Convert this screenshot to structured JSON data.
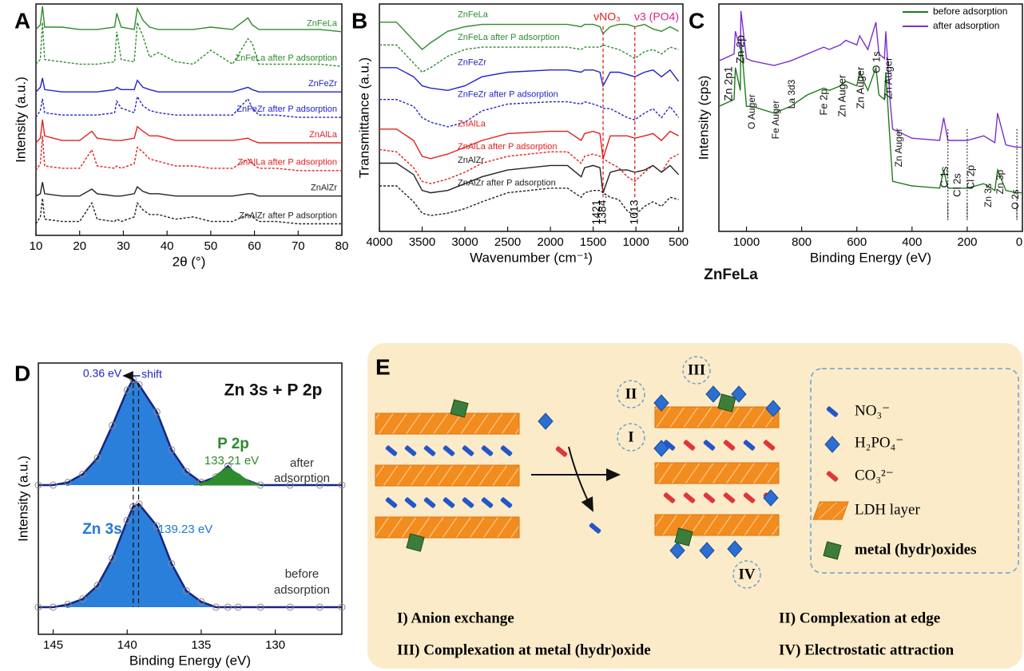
{
  "chart_data": [
    {
      "type": "line",
      "panel": "A",
      "x_label": "2θ (°)",
      "y_label": "Intensity (a.u.)",
      "xlim": [
        10,
        80
      ],
      "xticks": [
        10,
        20,
        30,
        40,
        50,
        60,
        70,
        80
      ],
      "ylim": [
        0,
        100
      ],
      "x": [
        10,
        11,
        11.5,
        12,
        16,
        20,
        22.8,
        24,
        28,
        28.5,
        29.5,
        32.5,
        33.2,
        34.5,
        36,
        38,
        42,
        46,
        50,
        55,
        58.5,
        59.5,
        61,
        65,
        70,
        75,
        80
      ],
      "series": [
        {
          "name": "ZnFeLa",
          "color": "#2e8b2e",
          "dashed": false,
          "values": [
            89,
            91,
            99,
            90,
            90,
            89,
            89,
            89,
            90,
            96,
            90,
            89,
            98,
            93,
            90,
            89,
            89,
            89,
            90,
            89,
            94,
            91,
            89,
            89,
            89,
            89,
            88
          ]
        },
        {
          "name": "ZnFeLa after P adsorption",
          "color": "#2e8b2e",
          "dashed": true,
          "values": [
            74,
            76,
            92,
            76,
            75,
            74,
            74,
            74,
            75,
            88,
            76,
            75,
            92,
            86,
            77,
            79,
            75,
            74,
            80,
            74,
            85,
            83,
            74,
            74,
            74,
            74,
            73
          ]
        },
        {
          "name": "ZnFeZr",
          "color": "#2323c8",
          "dashed": false,
          "values": [
            62,
            64,
            68,
            63,
            62,
            62,
            62,
            62,
            63,
            64,
            63,
            63,
            67,
            64,
            63,
            62,
            62,
            62,
            62,
            62,
            64,
            63,
            62,
            62,
            62,
            62,
            62
          ]
        },
        {
          "name": "ZnFeZr after P adsorption",
          "color": "#2323c8",
          "dashed": true,
          "values": [
            51,
            54,
            59,
            53,
            52,
            52,
            52,
            52,
            53,
            58,
            55,
            53,
            60,
            56,
            54,
            53,
            52,
            52,
            52,
            52,
            59,
            55,
            52,
            52,
            51,
            51,
            51
          ]
        },
        {
          "name": "ZnAlLa",
          "color": "#e02020",
          "dashed": false,
          "values": [
            40,
            42,
            50,
            43,
            41,
            41,
            45,
            42,
            41,
            41,
            41,
            42,
            47,
            45,
            43,
            43,
            41,
            41,
            41,
            41,
            42,
            41,
            40,
            40,
            40,
            40,
            40
          ]
        },
        {
          "name": "ZnAlLa after P adsorption",
          "color": "#e02020",
          "dashed": true,
          "values": [
            28,
            31,
            43,
            30,
            29,
            29,
            37,
            30,
            29,
            30,
            29,
            31,
            38,
            36,
            33,
            32,
            30,
            30,
            29,
            29,
            33,
            31,
            29,
            29,
            28,
            28,
            28
          ]
        },
        {
          "name": "ZnAlZr",
          "color": "#222222",
          "dashed": false,
          "values": [
            17,
            18,
            23,
            18,
            17,
            17,
            20,
            18,
            17,
            17,
            17,
            18,
            21,
            19,
            18,
            18,
            17,
            17,
            17,
            17,
            18,
            18,
            17,
            17,
            17,
            17,
            17
          ]
        },
        {
          "name": "ZnAlZr after P adsorption",
          "color": "#222222",
          "dashed": true,
          "values": [
            5,
            8,
            16,
            7,
            6,
            6,
            14,
            7,
            6,
            7,
            6,
            8,
            14,
            11,
            9,
            9,
            7,
            8,
            6,
            6,
            9,
            8,
            6,
            6,
            5,
            5,
            5
          ]
        }
      ]
    },
    {
      "type": "line",
      "panel": "B",
      "x_label": "Wavenumber (cm⁻¹)",
      "y_label": "Transmittance (a.u.)",
      "xlim": [
        4000,
        450
      ],
      "xticks": [
        4000,
        3500,
        3000,
        2500,
        2000,
        1500,
        1000,
        500
      ],
      "ylim": [
        0,
        100
      ],
      "x": [
        4000,
        3800,
        3600,
        3500,
        3400,
        3200,
        3000,
        2800,
        2500,
        2000,
        1800,
        1640,
        1600,
        1500,
        1421,
        1384,
        1300,
        1200,
        1100,
        1013,
        900,
        800,
        700,
        600,
        500
      ],
      "series": [
        {
          "name": "ZnFeLa",
          "color": "#2e8b2e",
          "dashed": false,
          "values": [
            92,
            92,
            84,
            80,
            83,
            88,
            90,
            91,
            91,
            91,
            91,
            90,
            91,
            91,
            90,
            87,
            90,
            91,
            91,
            90,
            91,
            89,
            88,
            90,
            88
          ]
        },
        {
          "name": "ZnFeLa after P adsorption",
          "color": "#2e8b2e",
          "dashed": true,
          "values": [
            82,
            82,
            74,
            70,
            72,
            77,
            80,
            81,
            81,
            81,
            81,
            80,
            81,
            81,
            81,
            82,
            81,
            80,
            78,
            76,
            79,
            80,
            78,
            81,
            80
          ]
        },
        {
          "name": "ZnFeZr",
          "color": "#2323c8",
          "dashed": false,
          "values": [
            72,
            72,
            68,
            64,
            63,
            62,
            64,
            68,
            70,
            71,
            71,
            70,
            71,
            71,
            70,
            64,
            70,
            70,
            69,
            68,
            70,
            71,
            68,
            71,
            66
          ]
        },
        {
          "name": "ZnFeZr after P adsorption",
          "color": "#2323c8",
          "dashed": true,
          "values": [
            58,
            58,
            55,
            50,
            48,
            46,
            48,
            53,
            56,
            57,
            57,
            56,
            57,
            56,
            55,
            54,
            54,
            52,
            50,
            49,
            52,
            54,
            50,
            55,
            50
          ]
        },
        {
          "name": "ZnAlLa",
          "color": "#e02020",
          "dashed": false,
          "values": [
            45,
            45,
            40,
            33,
            32,
            34,
            37,
            40,
            43,
            44,
            44,
            40,
            43,
            44,
            43,
            32,
            42,
            42,
            42,
            41,
            42,
            43,
            40,
            44,
            42
          ]
        },
        {
          "name": "ZnAlLa after P adsorption",
          "color": "#e02020",
          "dashed": true,
          "values": [
            36,
            35,
            28,
            22,
            21,
            23,
            26,
            30,
            33,
            35,
            35,
            30,
            33,
            34,
            33,
            32,
            30,
            28,
            24,
            22,
            26,
            29,
            26,
            32,
            34
          ]
        },
        {
          "name": "ZnAlZr",
          "color": "#222222",
          "dashed": false,
          "values": [
            30,
            30,
            25,
            18,
            17,
            18,
            21,
            24,
            27,
            29,
            29,
            24,
            28,
            29,
            28,
            17,
            26,
            27,
            27,
            26,
            27,
            29,
            26,
            29,
            25
          ]
        },
        {
          "name": "ZnAlZr after P adsorption",
          "color": "#222222",
          "dashed": true,
          "values": [
            20,
            20,
            13,
            8,
            7,
            8,
            10,
            13,
            17,
            19,
            19,
            15,
            17,
            18,
            18,
            17,
            15,
            14,
            9,
            7,
            11,
            13,
            11,
            15,
            14
          ]
        }
      ],
      "marks": [
        {
          "value": 1421,
          "label": "1421",
          "line": false
        },
        {
          "value": 1384,
          "label": "1384",
          "line": true
        },
        {
          "value": 1013,
          "label": "1013",
          "line": true
        }
      ],
      "annotations": [
        "νNO₃",
        "ν3 (PO4)"
      ]
    },
    {
      "type": "line",
      "panel": "C",
      "x_label": "Binding Energy (eV)",
      "y_label": "Intensity (cps)",
      "xlim": [
        1100,
        0
      ],
      "xticks": [
        1000,
        800,
        600,
        400,
        200,
        0
      ],
      "ylim": [
        0,
        100
      ],
      "legend": "upper right",
      "x": [
        1100,
        1045,
        1040,
        1022,
        1020,
        1000,
        980,
        900,
        840,
        780,
        720,
        700,
        660,
        640,
        600,
        590,
        560,
        531,
        520,
        500,
        495,
        480,
        470,
        400,
        300,
        285,
        270,
        200,
        140,
        100,
        90,
        60,
        20,
        0
      ],
      "series": [
        {
          "name": "before adsorption",
          "color": "#1f7a1f",
          "dashed": false,
          "values": [
            55,
            58,
            72,
            62,
            85,
            55,
            55,
            52,
            55,
            60,
            63,
            62,
            64,
            66,
            64,
            70,
            62,
            72,
            60,
            58,
            70,
            40,
            22,
            20,
            19,
            27,
            19,
            19,
            21,
            18,
            27,
            18,
            17,
            17
          ]
        },
        {
          "name": "after adsorption",
          "color": "#7b2fd0",
          "dashed": false,
          "values": [
            75,
            78,
            88,
            80,
            97,
            76,
            75,
            73,
            75,
            78,
            81,
            80,
            82,
            84,
            82,
            86,
            80,
            92,
            78,
            76,
            88,
            58,
            45,
            41,
            40,
            50,
            40,
            40,
            42,
            39,
            52,
            38,
            37,
            37
          ]
        }
      ],
      "dotted_lines": [
        270,
        200,
        20
      ],
      "annotations": [
        "Zn 2p1",
        "Zn 2p",
        "O Auger",
        "Fe Auger",
        "La 3d3",
        "Fe 2p",
        "Zn Auger",
        "Zn Auger",
        "O 1s",
        "Zn Auger",
        "Zn Auger",
        "C 1s",
        "Cl 2s",
        "Cl 2p",
        "Zn 3s",
        "Zn 3p",
        "O 2s",
        "ZnFeLa"
      ]
    },
    {
      "type": "line",
      "panel": "D",
      "x_label": "Binding Energy (eV)",
      "y_label": "Intensity (a.u.)",
      "xlim": [
        146,
        125.5
      ],
      "xticks": [
        145,
        140,
        135,
        130
      ],
      "ylim": [
        0,
        100
      ],
      "fill": "#1f78d8",
      "x": [
        146,
        145,
        144,
        143,
        142,
        141,
        140,
        139.6,
        139.2,
        138,
        137,
        136,
        135,
        134,
        133.2,
        132.5,
        131,
        129,
        127,
        125.5
      ],
      "series": [
        {
          "color": "#1a237e",
          "dashed": false,
          "values": [
            55,
            55,
            56,
            59,
            65,
            77,
            90,
            94,
            92,
            82,
            68,
            60,
            56,
            58,
            62,
            58,
            55,
            55,
            55,
            55
          ]
        },
        {
          "color": "#1a237e",
          "dashed": false,
          "values": [
            10,
            10,
            11,
            13,
            18,
            28,
            42,
            47,
            48,
            40,
            26,
            16,
            12,
            10,
            10,
            10,
            10,
            10,
            10,
            10
          ]
        }
      ],
      "components": [
        {
          "color": "#2e8b2e",
          "x": [
            135.5,
            134.5,
            133.8,
            133.21,
            132.6,
            131.8,
            131
          ],
          "values": [
            55,
            56.5,
            59.5,
            61.5,
            59.5,
            56.5,
            55
          ]
        }
      ],
      "dashed_lines": [
        139.59,
        139.23
      ],
      "annotations": [
        "0.36 eV",
        "shift",
        "Zn 3s + P 2p",
        "P 2p",
        "133.21 eV",
        "after",
        "adsorption",
        "Zn 3s",
        "139.23 eV",
        "before",
        "adsorption"
      ]
    }
  ],
  "diagram": {
    "label": "E",
    "legend": [
      "NO₃⁻",
      "H₂PO₄⁻",
      "CO₃²⁻",
      "LDH layer",
      "metal (hydr)oxides"
    ],
    "callouts": [
      "I",
      "II",
      "III",
      "IV"
    ],
    "captions": [
      "I) Anion exchange",
      "II) Complexation at edge",
      "III) Complexation at metal (hydr)oxide",
      "IV) Electrostatic attraction"
    ]
  }
}
